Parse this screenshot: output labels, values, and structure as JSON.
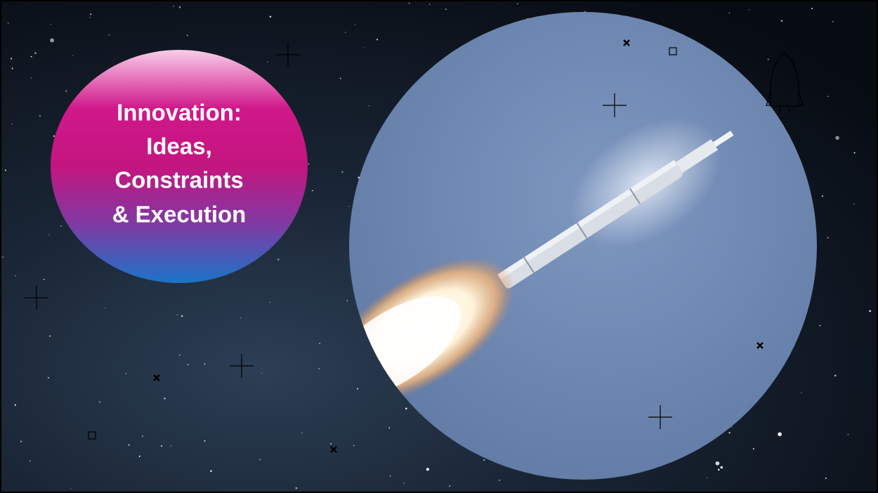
{
  "slide": {
    "title_lines": [
      "Innovation:",
      "Ideas,",
      "Constraints",
      "& Execution"
    ]
  }
}
